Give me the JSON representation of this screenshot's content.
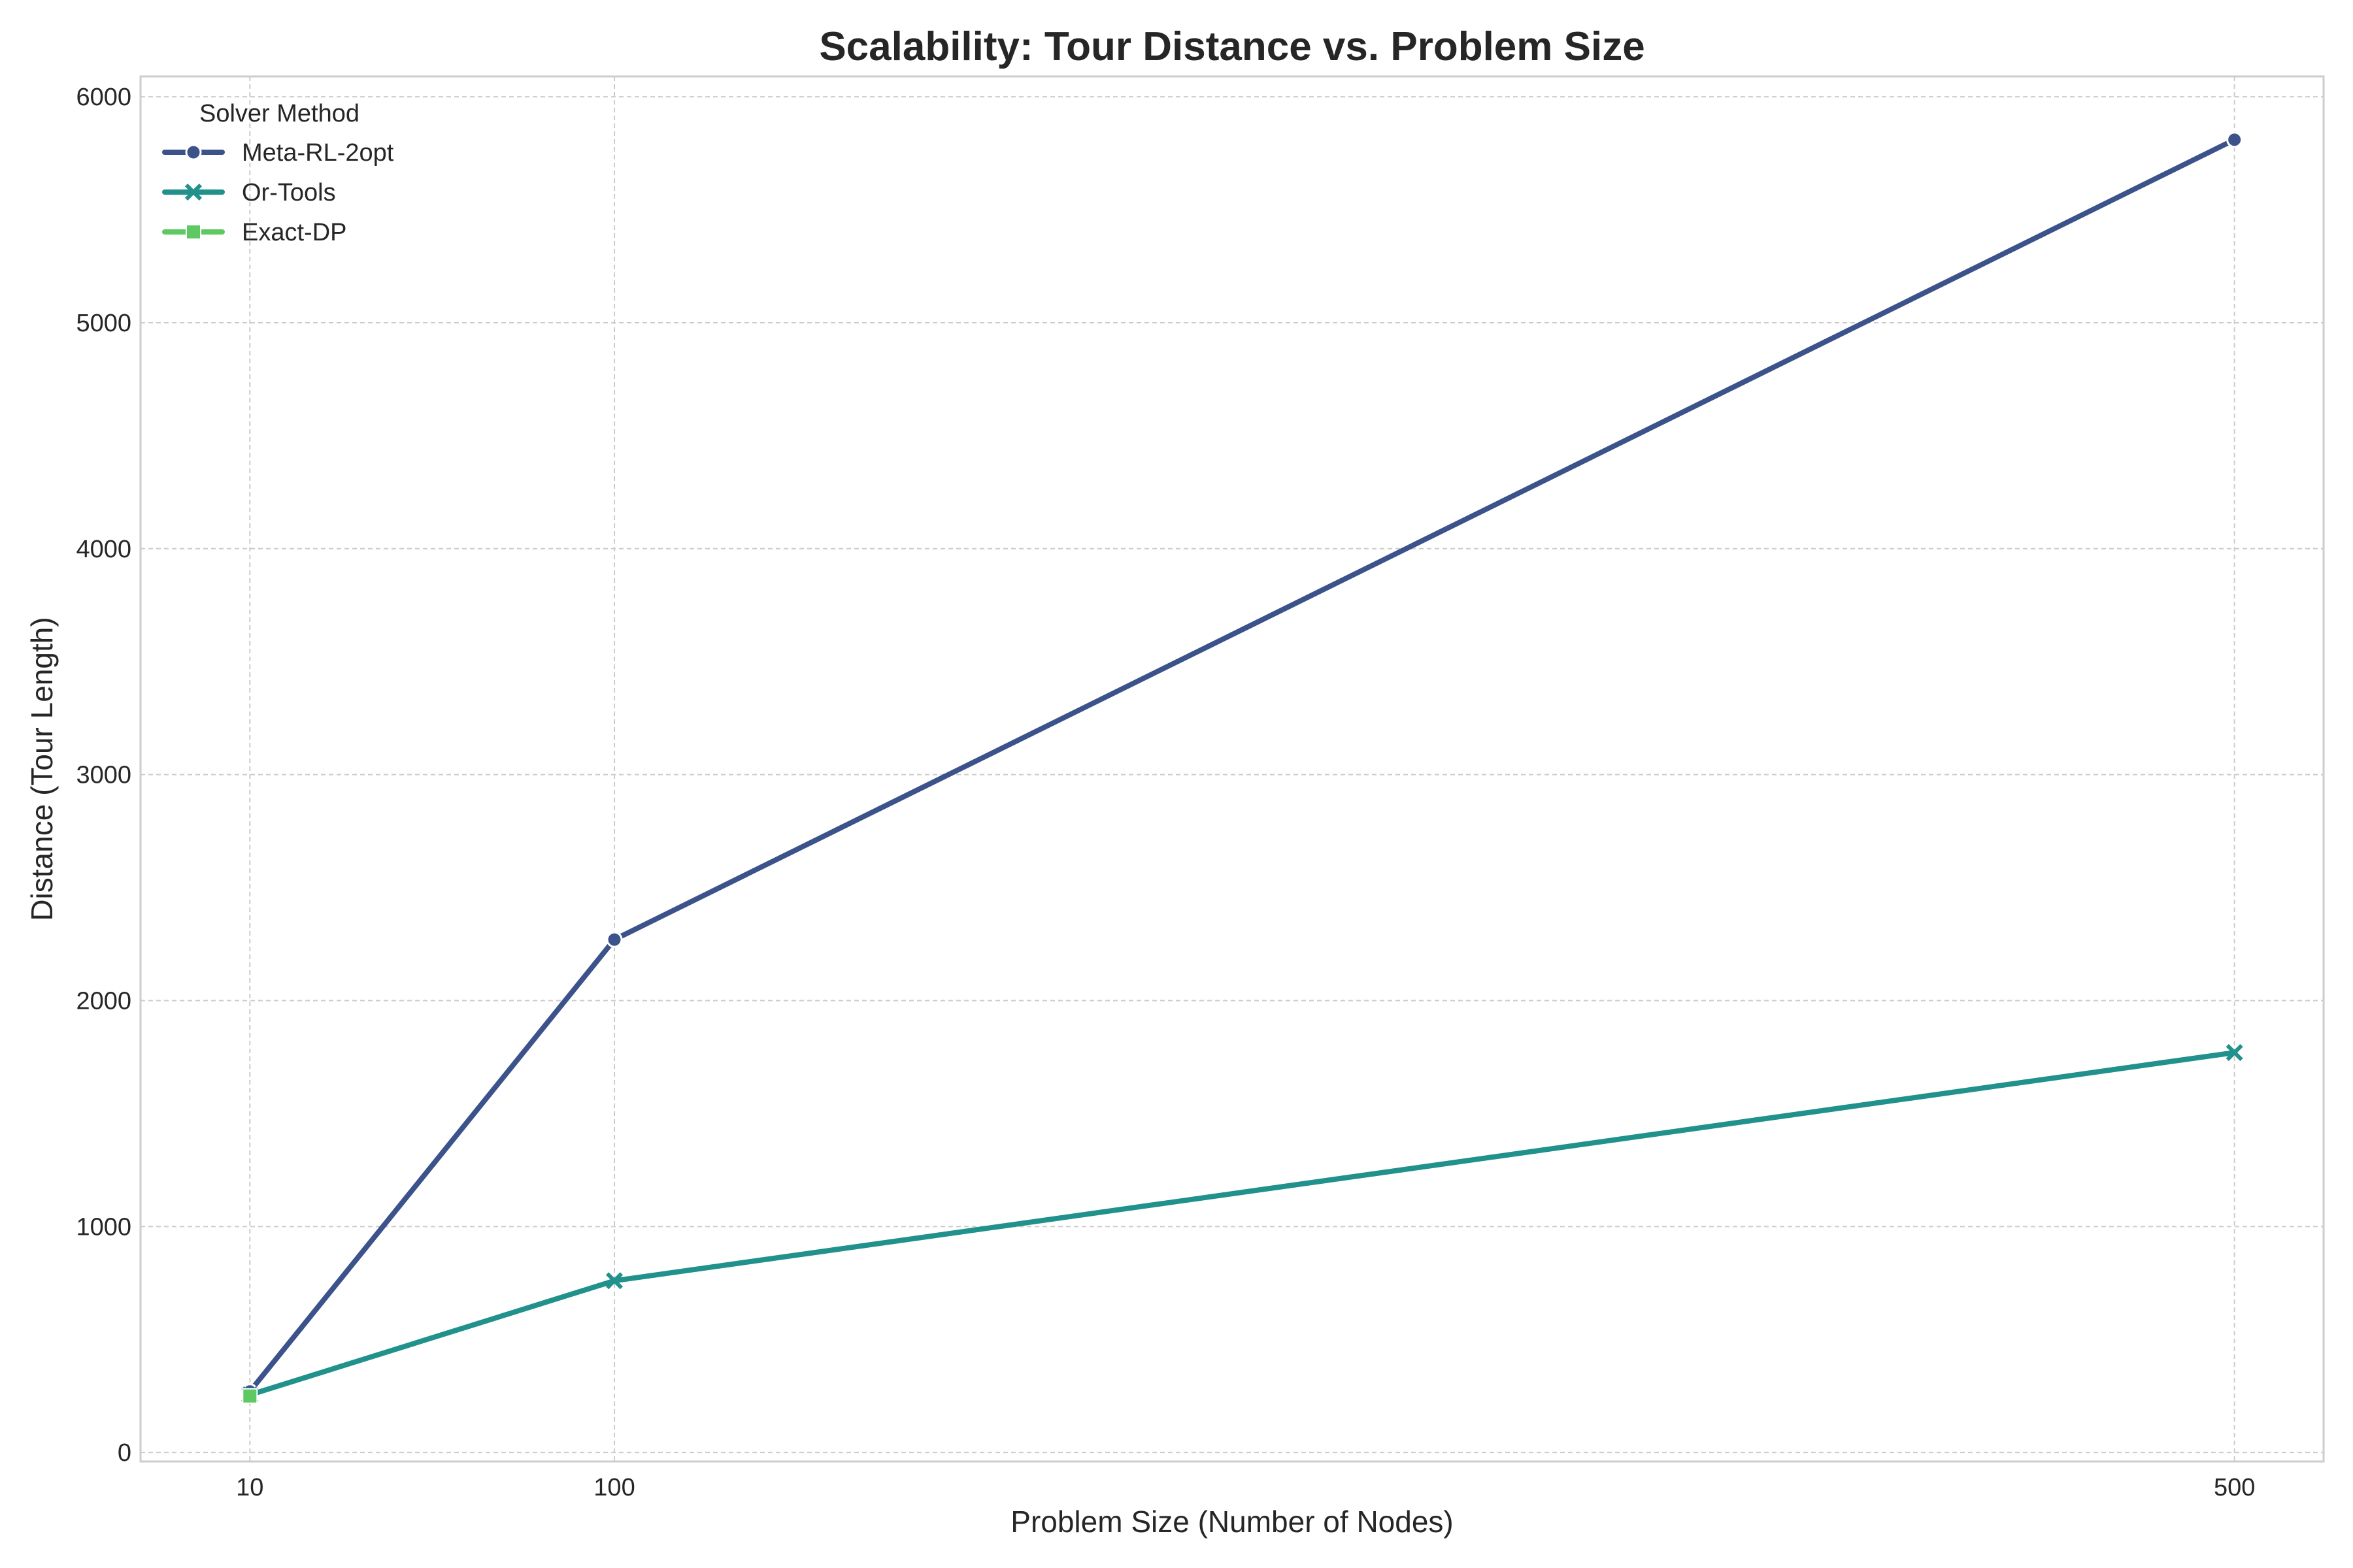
{
  "chart_data": {
    "type": "line",
    "title": "Scalability: Tour Distance vs. Problem Size",
    "xlabel": "Problem Size (Number of Nodes)",
    "ylabel": "Distance (Tour Length)",
    "x_ticks": [
      10,
      100,
      500
    ],
    "y_ticks": [
      0,
      1000,
      2000,
      3000,
      4000,
      5000,
      6000
    ],
    "xlim": [
      -17,
      522
    ],
    "ylim": [
      -40,
      6090
    ],
    "grid": true,
    "legend": {
      "title": "Solver Method",
      "placement": "top-left"
    },
    "series": [
      {
        "name": "Meta-RL-2opt",
        "color": "#3b528b",
        "marker": "circle",
        "x": [
          10,
          100,
          500
        ],
        "y": [
          270,
          2270,
          5810
        ]
      },
      {
        "name": "Or-Tools",
        "color": "#21918c",
        "marker": "x",
        "x": [
          10,
          100,
          500
        ],
        "y": [
          255,
          760,
          1770
        ]
      },
      {
        "name": "Exact-DP",
        "color": "#5ec962",
        "marker": "square",
        "x": [
          10
        ],
        "y": [
          250
        ]
      }
    ]
  }
}
